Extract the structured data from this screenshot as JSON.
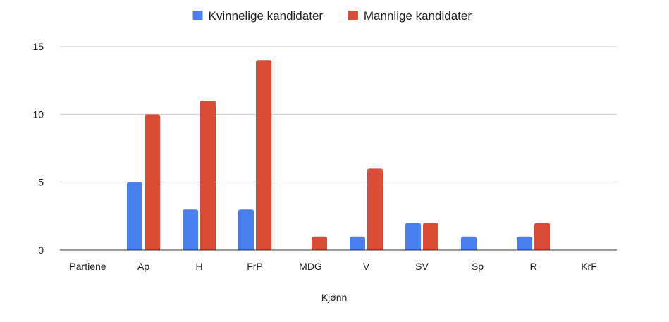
{
  "chart_data": {
    "type": "bar",
    "title": "",
    "xlabel": "Kjønn",
    "ylabel": "",
    "categories": [
      "Partiene",
      "Ap",
      "H",
      "FrP",
      "MDG",
      "V",
      "SV",
      "Sp",
      "R",
      "KrF"
    ],
    "series": [
      {
        "name": "Kvinnelige kandidater",
        "color": "#4a7fef",
        "values": [
          0,
          5,
          3,
          3,
          0,
          1,
          2,
          1,
          1,
          0
        ]
      },
      {
        "name": "Mannlige kandidater",
        "color": "#db4c36",
        "values": [
          0,
          10,
          11,
          14,
          1,
          6,
          2,
          0,
          2,
          0
        ]
      }
    ],
    "ylim": [
      0,
      15
    ],
    "yticks": [
      0,
      5,
      10,
      15
    ],
    "grid": true,
    "legend_position": "top"
  }
}
